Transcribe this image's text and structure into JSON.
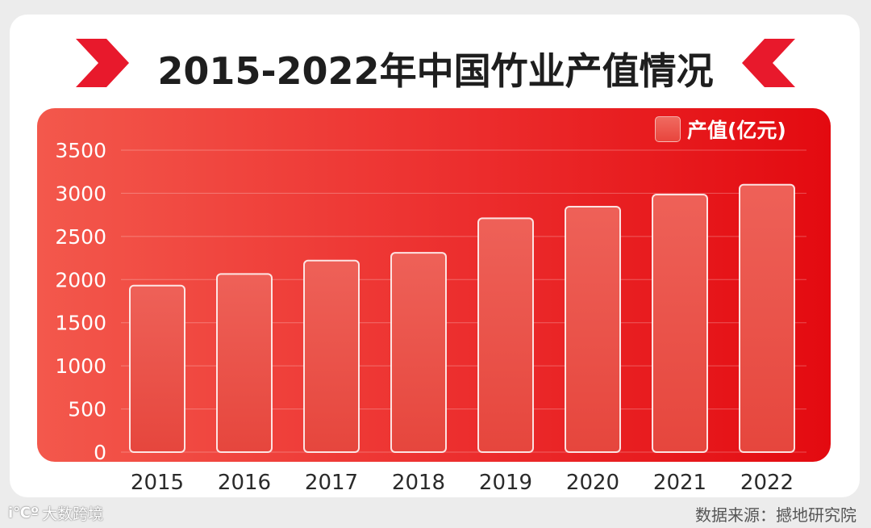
{
  "footer": {
    "brand_mark": "i℃º",
    "brand_name": "大数跨境",
    "source": "数据来源：撼地研究院"
  },
  "colors": {
    "title_deco": "#e8192c",
    "panel_start": "#f3584c",
    "panel_end": "#e30a10",
    "bar_fill": "#e9493f",
    "bar_stroke": "#ffffff"
  },
  "chart_data": {
    "type": "bar",
    "title": "2015-2022年中国竹业产值情况",
    "categories": [
      "2015",
      "2016",
      "2017",
      "2018",
      "2019",
      "2020",
      "2021",
      "2022"
    ],
    "series": [
      {
        "name": "产值(亿元)",
        "values": [
          1930,
          2065,
          2220,
          2310,
          2710,
          2845,
          2985,
          3100
        ]
      }
    ],
    "xlabel": "",
    "ylabel": "",
    "ylim": [
      0,
      3500
    ],
    "yticks": [
      0,
      500,
      1000,
      1500,
      2000,
      2500,
      3000,
      3500
    ],
    "grid": true,
    "legend_position": "top-right"
  }
}
